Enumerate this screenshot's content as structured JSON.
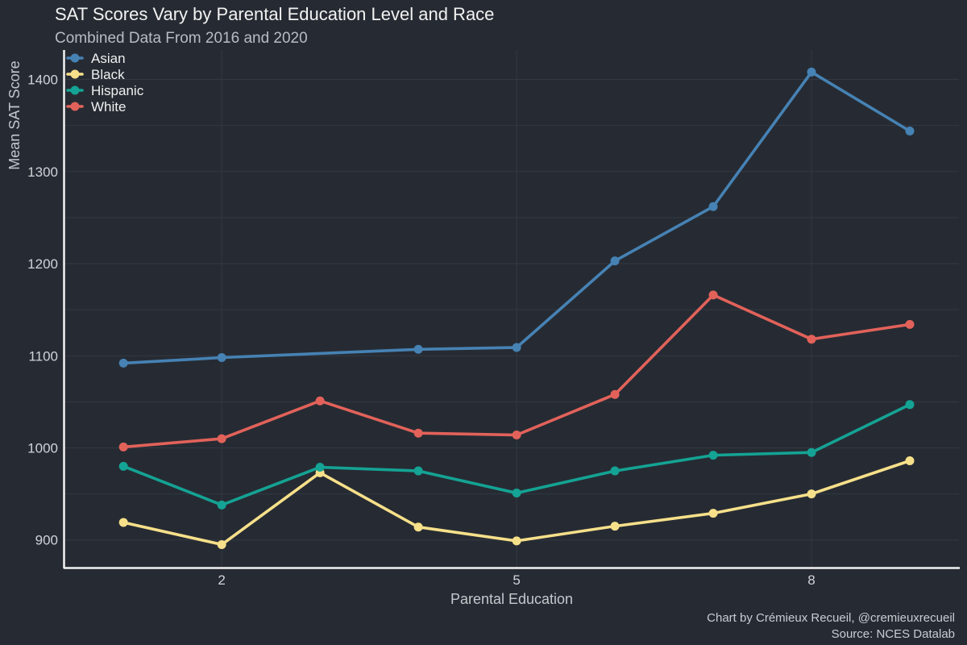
{
  "chart_data": {
    "type": "line",
    "title": "SAT Scores Vary by Parental Education Level and Race",
    "subtitle": "Combined Data From 2016 and 2020",
    "xlabel": "Parental Education",
    "ylabel": "Mean SAT Score",
    "x": [
      1,
      2,
      3,
      4,
      5,
      6,
      7,
      8,
      9
    ],
    "xticks": [
      2,
      5,
      8
    ],
    "xlim": [
      0.4,
      9.5
    ],
    "yticks": [
      900,
      1000,
      1100,
      1200,
      1300,
      1400
    ],
    "ylim": [
      870,
      1432
    ],
    "grid": true,
    "legend_position": "top-left",
    "series": [
      {
        "name": "Asian",
        "color": "#4682b4",
        "x": [
          1,
          2,
          4,
          5,
          6,
          7,
          8,
          9
        ],
        "values": [
          1092,
          1098,
          1107,
          1109,
          1203,
          1262,
          1408,
          1344
        ]
      },
      {
        "name": "Black",
        "color": "#f7e08a",
        "x": [
          1,
          2,
          3,
          4,
          5,
          6,
          7,
          8,
          9
        ],
        "values": [
          919,
          895,
          973,
          914,
          899,
          915,
          929,
          950,
          986
        ]
      },
      {
        "name": "Hispanic",
        "color": "#14a394",
        "x": [
          1,
          2,
          3,
          4,
          5,
          6,
          7,
          8,
          9
        ],
        "values": [
          980,
          938,
          979,
          975,
          951,
          975,
          992,
          995,
          1047
        ]
      },
      {
        "name": "White",
        "color": "#e2625a",
        "x": [
          1,
          2,
          3,
          4,
          5,
          6,
          7,
          8,
          9
        ],
        "values": [
          1001,
          1010,
          1051,
          1016,
          1014,
          1058,
          1166,
          1118,
          1134
        ]
      }
    ]
  },
  "caption": {
    "line1": "Chart by Crémieux Recueil, @cremieuxrecueil",
    "line2": "Source: NCES Datalab"
  }
}
